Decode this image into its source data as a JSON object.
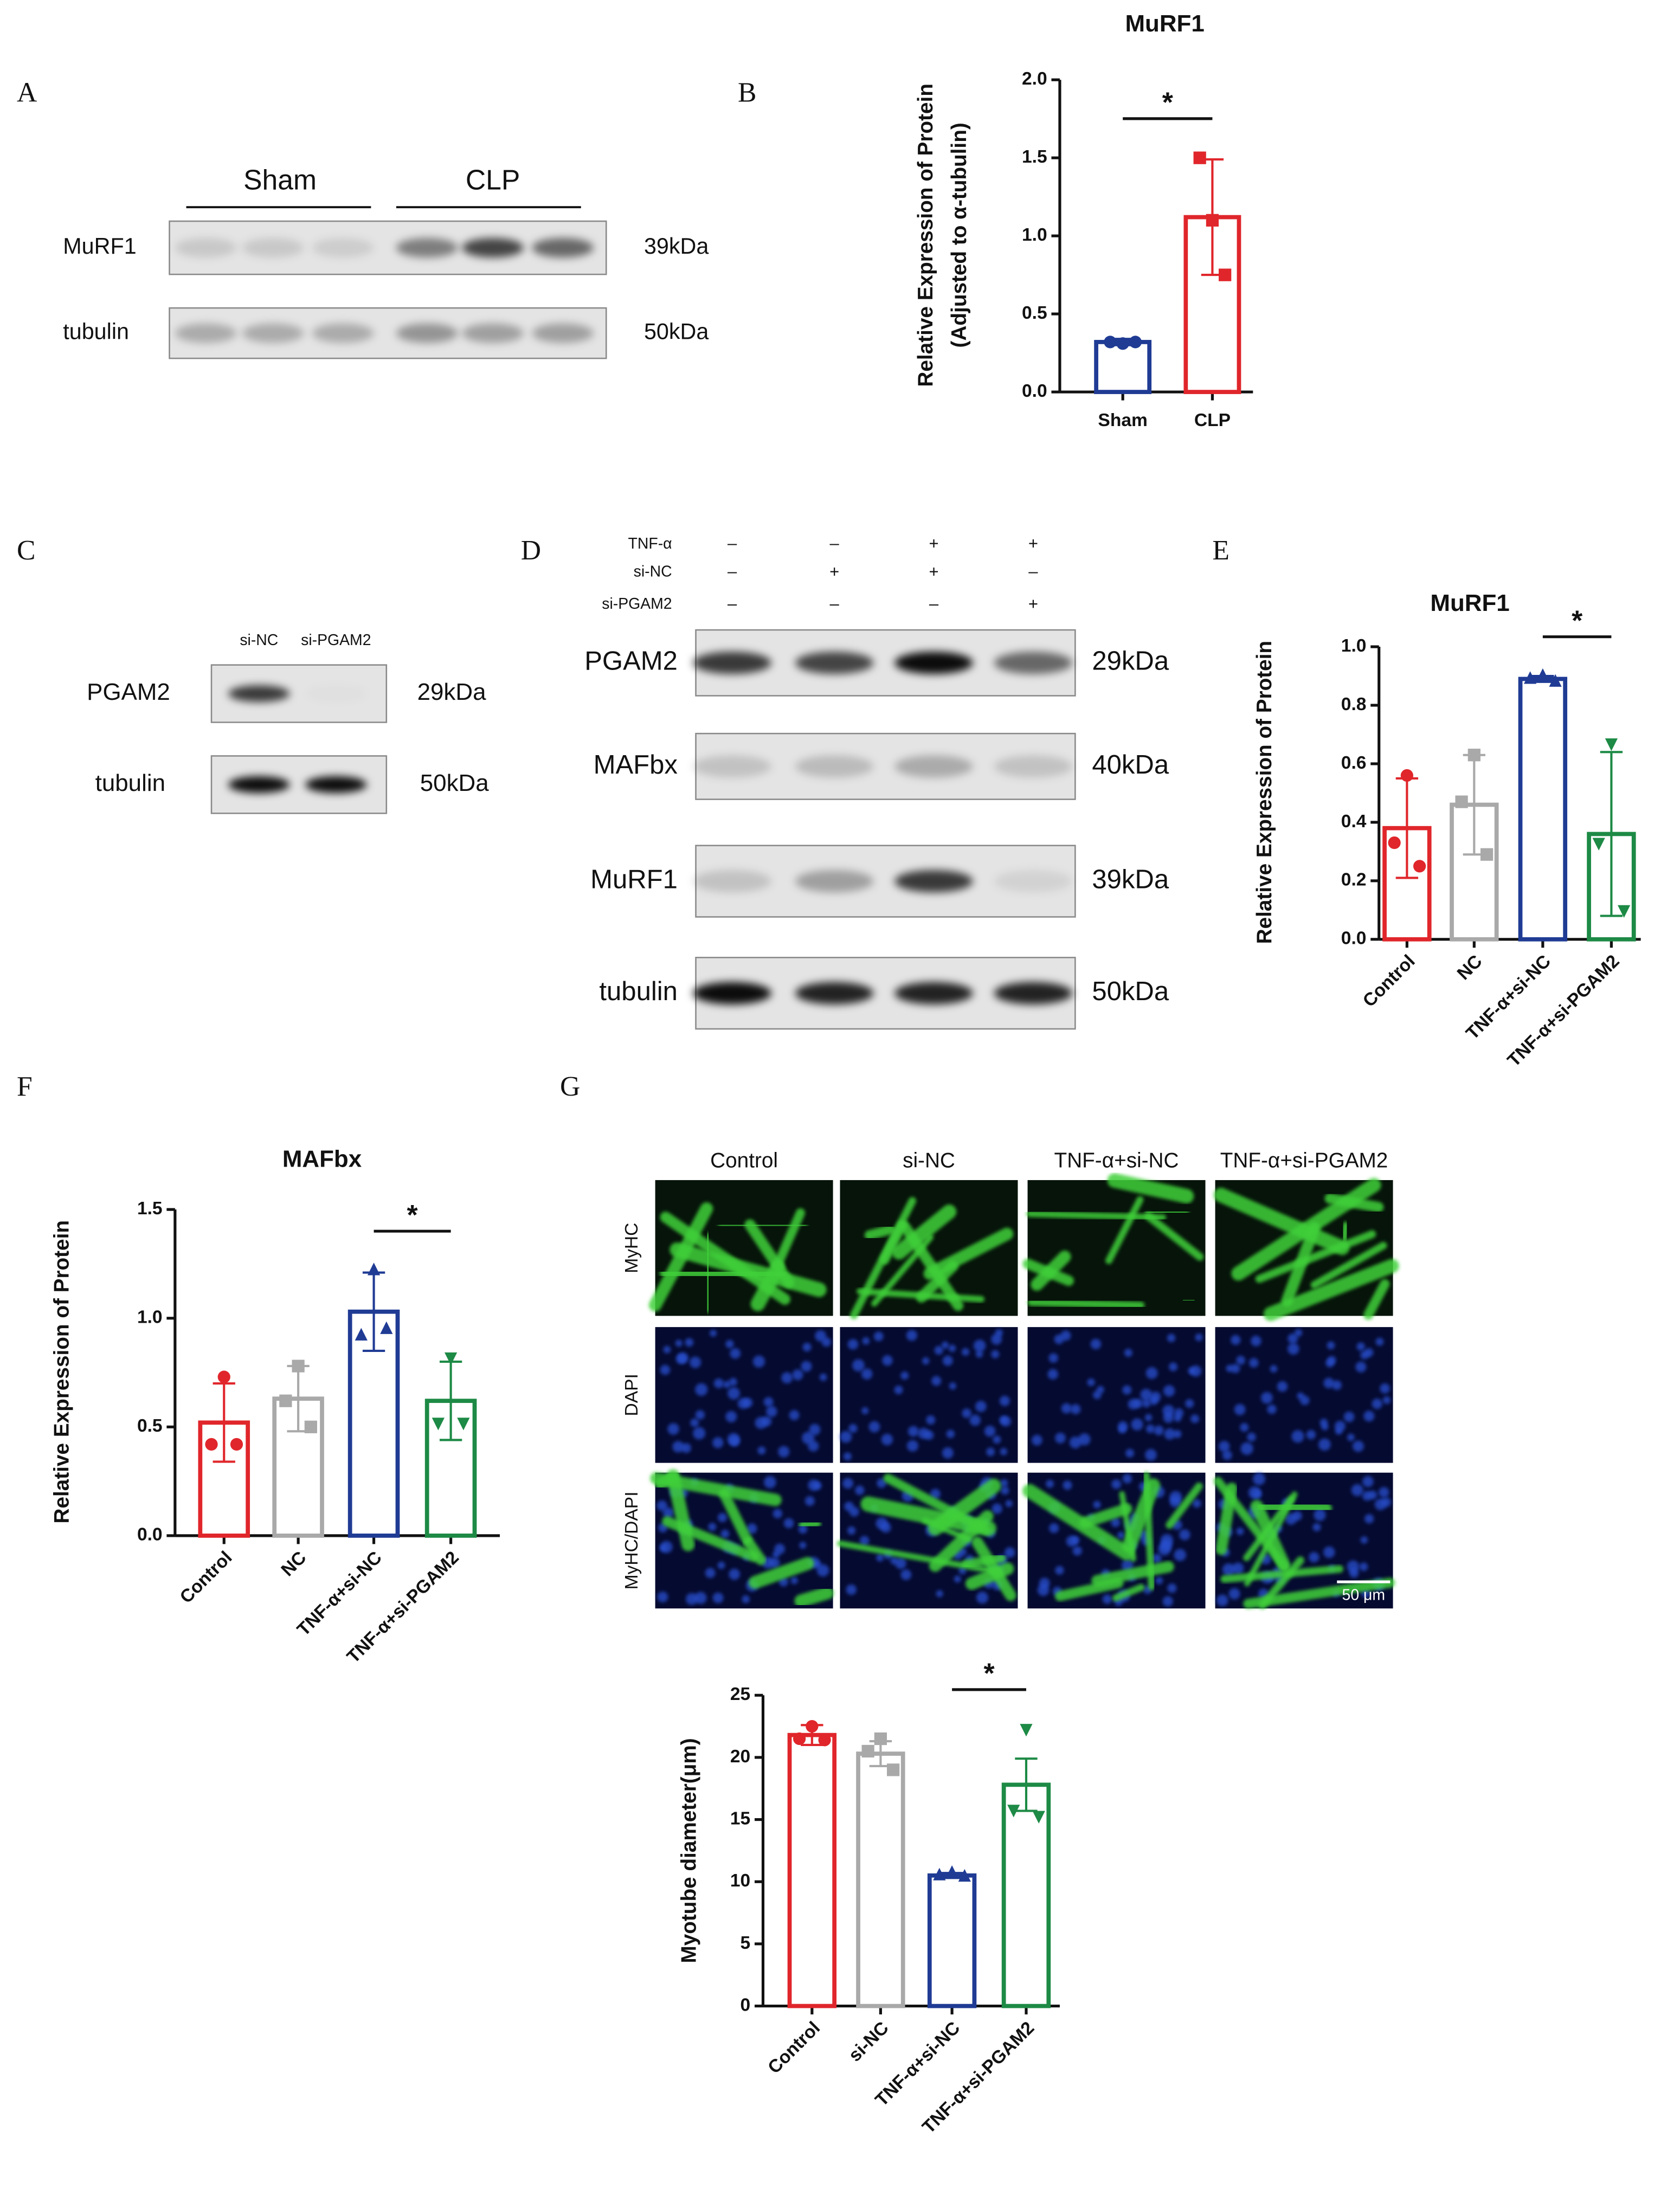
{
  "panel_labels": [
    "A",
    "B",
    "C",
    "D",
    "E",
    "F",
    "G"
  ],
  "panel_a": {
    "groups": [
      "Sham",
      "CLP"
    ],
    "blots": [
      {
        "protein": "MuRF1",
        "size": "39kDa"
      },
      {
        "protein": "tubulin",
        "size": "50kDa"
      }
    ]
  },
  "panel_c": {
    "lanes": [
      "si-NC",
      "si-PGAM2"
    ],
    "blots": [
      {
        "protein": "PGAM2",
        "size": "29kDa"
      },
      {
        "protein": "tubulin",
        "size": "50kDa"
      }
    ]
  },
  "panel_d": {
    "conditions": [
      {
        "name": "TNF-α",
        "signs": [
          "–",
          "–",
          "+",
          "+"
        ]
      },
      {
        "name": "si-NC",
        "signs": [
          "–",
          "+",
          "+",
          "–"
        ]
      },
      {
        "name": "si-PGAM2",
        "signs": [
          "–",
          "–",
          "–",
          "+"
        ]
      }
    ],
    "blots": [
      {
        "protein": "PGAM2",
        "size": "29kDa"
      },
      {
        "protein": "MAFbx",
        "size": "40kDa"
      },
      {
        "protein": "MuRF1",
        "size": "39kDa"
      },
      {
        "protein": "tubulin",
        "size": "50kDa"
      }
    ]
  },
  "panel_g": {
    "columns": [
      "Control",
      "si-NC",
      "TNF-α+si-NC",
      "TNF-α+si-PGAM2"
    ],
    "rows": [
      "MyHC",
      "DAPI",
      "MyHC/DAPI"
    ],
    "scale_bar": "50 μm"
  },
  "chart_data": [
    {
      "type": "bar",
      "title": "MuRF1",
      "ylabel": [
        "Relative Expression of Protein",
        "(Adjusted to α-tubulin)"
      ],
      "categories": [
        "Sham",
        "CLP"
      ],
      "values": [
        0.32,
        1.12
      ],
      "errors": [
        0.02,
        0.37
      ],
      "points": [
        [
          0.31,
          0.32,
          0.32
        ],
        [
          1.1,
          1.5,
          0.75
        ]
      ],
      "colors": [
        "#1f3b94",
        "#e0262b"
      ],
      "ylim": [
        0,
        2
      ],
      "yticks": [
        {
          "value": 0,
          "label": "0.0"
        },
        {
          "value": 0.5,
          "label": "0.5"
        },
        {
          "value": 1,
          "label": "1.0"
        },
        {
          "value": 1.5,
          "label": "1.5"
        },
        {
          "value": 2,
          "label": "2.0"
        }
      ],
      "annotation": "*"
    },
    {
      "type": "bar",
      "title": "MuRF1",
      "ylabel": "Relative Expression of Protein",
      "categories": [
        "Control",
        "NC",
        "TNF-α+si-NC",
        "TNF-α+si-PGAM2"
      ],
      "values": [
        0.38,
        0.46,
        0.89,
        0.36
      ],
      "errors": [
        0.17,
        0.17,
        0.01,
        0.28
      ],
      "points": [
        [
          0.56,
          0.33,
          0.25
        ],
        [
          0.63,
          0.47,
          0.29
        ],
        [
          0.9,
          0.89,
          0.88
        ],
        [
          0.67,
          0.33,
          0.1
        ]
      ],
      "colors": [
        "#e0262b",
        "#a9a9a9",
        "#1f3b94",
        "#1d8a45"
      ],
      "ylim": [
        0,
        1
      ],
      "yticks": [
        {
          "value": 0,
          "label": "0.0"
        },
        {
          "value": 0.2,
          "label": "0.2"
        },
        {
          "value": 0.4,
          "label": "0.4"
        },
        {
          "value": 0.6,
          "label": "0.6"
        },
        {
          "value": 0.8,
          "label": "0.8"
        },
        {
          "value": 1,
          "label": "1.0"
        }
      ],
      "annotation": "*"
    },
    {
      "type": "bar",
      "title": "MAFbx",
      "ylabel": "Relative Expression of Protein",
      "categories": [
        "Control",
        "NC",
        "TNF-α+si-NC",
        "TNF-α+si-PGAM2"
      ],
      "values": [
        0.52,
        0.63,
        1.03,
        0.62
      ],
      "errors": [
        0.18,
        0.15,
        0.18,
        0.18
      ],
      "points": [
        [
          0.73,
          0.42,
          0.42
        ],
        [
          0.78,
          0.62,
          0.5
        ],
        [
          1.22,
          0.92,
          0.95
        ],
        [
          0.82,
          0.52,
          0.52
        ]
      ],
      "colors": [
        "#e0262b",
        "#a9a9a9",
        "#1f3b94",
        "#1d8a45"
      ],
      "ylim": [
        0,
        1.5
      ],
      "yticks": [
        {
          "value": 0,
          "label": "0.0"
        },
        {
          "value": 0.5,
          "label": "0.5"
        },
        {
          "value": 1,
          "label": "1.0"
        },
        {
          "value": 1.5,
          "label": "1.5"
        }
      ],
      "annotation": "*"
    },
    {
      "type": "bar",
      "ylabel": "Myotube diameter(μm)",
      "categories": [
        "Control",
        "si-NC",
        "TNF-α+si-NC",
        "TNF-α+si-PGAM2"
      ],
      "values": [
        21.8,
        20.3,
        10.5,
        17.8
      ],
      "errors": [
        0.8,
        1.0,
        0.2,
        2.1
      ],
      "points": [
        [
          22.5,
          21.5,
          21.4
        ],
        [
          21.5,
          20.5,
          19
        ],
        [
          10.7,
          10.5,
          10.4
        ],
        [
          22.3,
          15.8,
          15.3
        ]
      ],
      "colors": [
        "#e0262b",
        "#a9a9a9",
        "#1f3b94",
        "#1d8a45"
      ],
      "ylim": [
        0,
        25
      ],
      "yticks": [
        0,
        5,
        10,
        15,
        20,
        25
      ],
      "annotation": "*"
    }
  ]
}
